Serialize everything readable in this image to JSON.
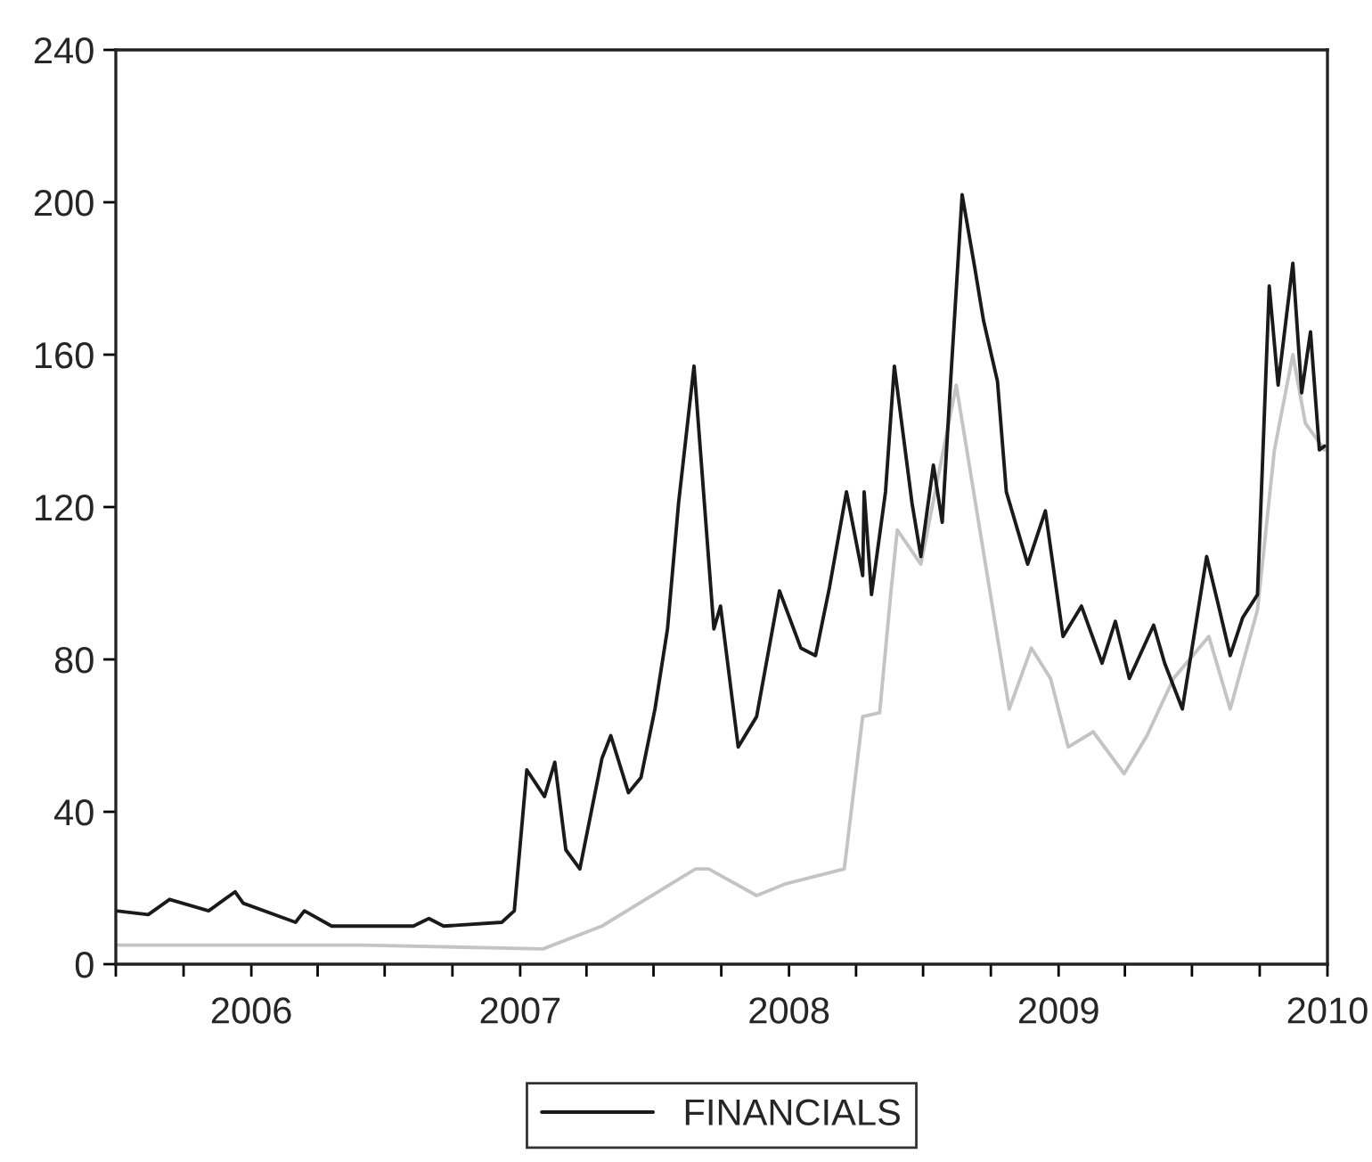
{
  "chart_data": {
    "type": "line",
    "legend": "bottom",
    "grid": false,
    "marker": "none",
    "line_style": "solid",
    "xlim": [
      "2005-07-01",
      "2010-01-01"
    ],
    "xticks": [
      {
        "value": "2005-07-01",
        "label": null
      },
      {
        "value": "2005-10-01",
        "label": null
      },
      {
        "value": "2006-01-01",
        "label": "2006"
      },
      {
        "value": "2006-04-01",
        "label": null
      },
      {
        "value": "2006-07-01",
        "label": null
      },
      {
        "value": "2006-10-01",
        "label": null
      },
      {
        "value": "2007-01-01",
        "label": "2007"
      },
      {
        "value": "2007-04-01",
        "label": null
      },
      {
        "value": "2007-07-01",
        "label": null
      },
      {
        "value": "2007-10-01",
        "label": null
      },
      {
        "value": "2008-01-01",
        "label": "2008"
      },
      {
        "value": "2008-04-01",
        "label": null
      },
      {
        "value": "2008-07-01",
        "label": null
      },
      {
        "value": "2008-10-01",
        "label": null
      },
      {
        "value": "2009-01-01",
        "label": "2009"
      },
      {
        "value": "2009-04-01",
        "label": null
      },
      {
        "value": "2009-07-01",
        "label": null
      },
      {
        "value": "2009-10-01",
        "label": null
      },
      {
        "value": "2010-01-01",
        "label": "2010"
      }
    ],
    "ylim": [
      0,
      240
    ],
    "yticks": [
      0,
      40,
      80,
      120,
      160,
      200,
      240
    ],
    "series": [
      {
        "color": "#c4c4c4",
        "x": [
          "2005-07-01",
          "2006-06-01",
          "2007-02-01",
          "2007-04-22",
          "2007-08-27",
          "2007-09-14",
          "2007-11-18",
          "2007-12-26",
          "2008-03-16",
          "2008-04-10",
          "2008-05-03",
          "2008-05-18",
          "2008-05-27",
          "2008-06-28",
          "2008-08-15",
          "2008-10-03",
          "2008-10-26",
          "2008-11-25",
          "2008-12-21",
          "2009-01-14",
          "2009-02-17",
          "2009-03-31",
          "2009-05-01",
          "2009-06-06",
          "2009-07-24",
          "2009-08-22",
          "2009-09-28",
          "2009-10-21",
          "2009-11-15",
          "2009-12-02",
          "2009-12-28"
        ],
        "values": [
          5,
          5,
          4,
          10,
          25,
          25,
          18,
          21,
          25,
          65,
          66,
          97,
          114,
          105,
          152,
          94,
          67,
          83,
          75,
          57,
          61,
          50,
          60,
          75,
          86,
          67,
          93,
          135,
          160,
          142,
          135
        ]
      },
      {
        "name": "FINANCIALS",
        "color": "#1a1a1a",
        "x": [
          "2005-07-01",
          "2005-08-14",
          "2005-09-12",
          "2005-11-04",
          "2005-12-10",
          "2005-12-21",
          "2006-03-02",
          "2006-03-14",
          "2006-04-20",
          "2006-08-09",
          "2006-08-30",
          "2006-09-19",
          "2006-12-07",
          "2006-12-24",
          "2007-01-10",
          "2007-02-03",
          "2007-02-17",
          "2007-03-04",
          "2007-03-23",
          "2007-04-22",
          "2007-05-04",
          "2007-05-28",
          "2007-06-14",
          "2007-07-03",
          "2007-07-20",
          "2007-08-04",
          "2007-08-25",
          "2007-09-21",
          "2007-09-30",
          "2007-10-24",
          "2007-11-18",
          "2007-12-19",
          "2008-01-17",
          "2008-02-06",
          "2008-02-25",
          "2008-03-19",
          "2008-04-10",
          "2008-04-12",
          "2008-04-22",
          "2008-05-11",
          "2008-05-23",
          "2008-06-16",
          "2008-06-28",
          "2008-07-15",
          "2008-07-27",
          "2008-08-08",
          "2008-08-23",
          "2008-09-09",
          "2008-09-21",
          "2008-10-10",
          "2008-10-22",
          "2008-11-20",
          "2008-12-14",
          "2009-01-07",
          "2009-02-01",
          "2009-03-01",
          "2009-03-19",
          "2009-04-07",
          "2009-05-10",
          "2009-05-25",
          "2009-06-18",
          "2009-07-21",
          "2009-08-05",
          "2009-08-22",
          "2009-09-08",
          "2009-09-28",
          "2009-10-14",
          "2009-10-26",
          "2009-11-15",
          "2009-11-27",
          "2009-12-09",
          "2009-12-21",
          "2009-12-28"
        ],
        "values": [
          14,
          13,
          17,
          14,
          19,
          16,
          11,
          14,
          10,
          10,
          12,
          10,
          11,
          14,
          51,
          44,
          53,
          30,
          25,
          54,
          60,
          45,
          49,
          67,
          88,
          121,
          157,
          88,
          94,
          57,
          65,
          98,
          83,
          81,
          99,
          124,
          102,
          124,
          97,
          124,
          157,
          121,
          107,
          131,
          116,
          155,
          202,
          183,
          169,
          153,
          124,
          105,
          119,
          86,
          94,
          79,
          90,
          75,
          89,
          79,
          67,
          107,
          95,
          81,
          91,
          97,
          178,
          152,
          184,
          150,
          166,
          135,
          136
        ]
      }
    ]
  }
}
